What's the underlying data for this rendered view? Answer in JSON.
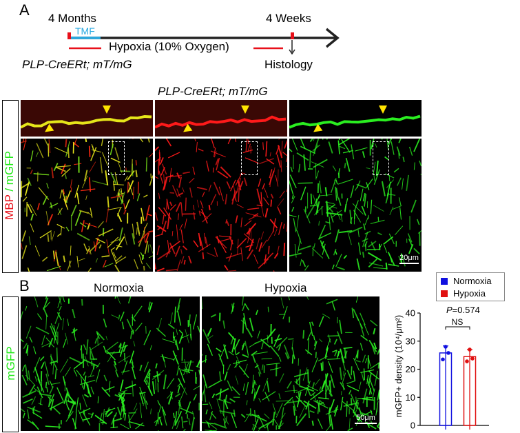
{
  "panel_a": {
    "letter": "A",
    "timeline": {
      "start_label": "4 Months",
      "end_label": "4 Weeks",
      "tmf_label": "TMF",
      "hypoxia_label": "Hypoxia (10% Oxygen)",
      "genotype": "PLP-CreERt; mT/mG",
      "endpoint": "Histology"
    },
    "image_title": "PLP-CreERt; mT/mG",
    "channel_label_red": "MBP",
    "channel_label_sep": " / ",
    "channel_label_green": "mGFP",
    "scalebar": "20μm",
    "colors": {
      "red": "#e8101a",
      "green": "#22e818",
      "yellow": "#e6e61a",
      "tmf": "#29a9e0",
      "arrow": "#ffe400"
    }
  },
  "panel_b": {
    "letter": "B",
    "col_labels": [
      "Normoxia",
      "Hypoxia"
    ],
    "channel_label": "mGFP",
    "scalebar": "50μm",
    "legend": [
      {
        "label": "Normoxia",
        "color": "#1010e0"
      },
      {
        "label": "Hypoxia",
        "color": "#e01010"
      }
    ]
  },
  "chart_data": {
    "type": "bar",
    "categories": [
      "Normoxia",
      "Hypoxia"
    ],
    "values": [
      25.8,
      24.5
    ],
    "errors": [
      2.5,
      2.5
    ],
    "points": [
      [
        28.0,
        23.5,
        25.8
      ],
      [
        27.0,
        22.8,
        23.8
      ]
    ],
    "colors": [
      "#1010e0",
      "#e01010"
    ],
    "ylabel": "mGFP+ density  (10⁴/μm²)",
    "ylim": [
      0,
      40
    ],
    "yticks": [
      "0",
      "10",
      "20",
      "30",
      "40"
    ],
    "annotation_p": "P",
    "annotation_p_value": "=0.574",
    "annotation_ns": "NS"
  }
}
